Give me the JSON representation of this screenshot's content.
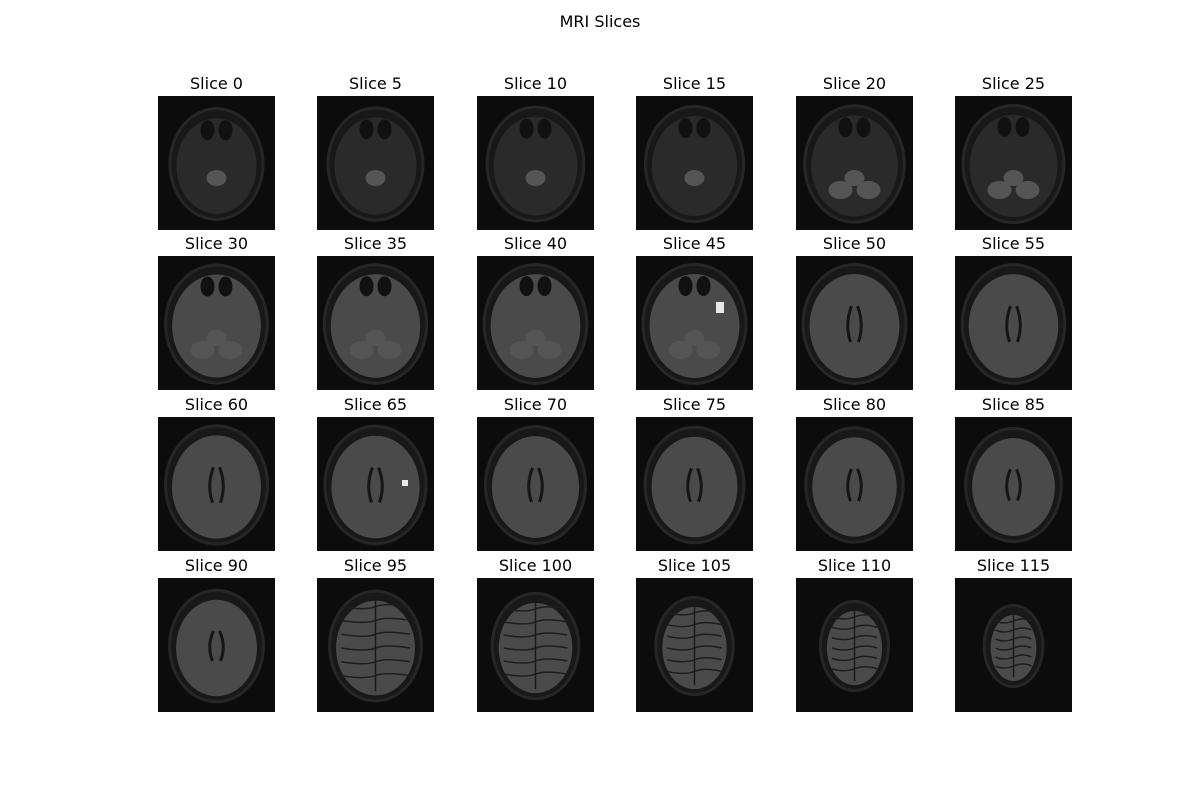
{
  "figure": {
    "title": "MRI Slices"
  },
  "slices": [
    {
      "label": "Slice 0",
      "index": 0
    },
    {
      "label": "Slice 5",
      "index": 5
    },
    {
      "label": "Slice 10",
      "index": 10
    },
    {
      "label": "Slice 15",
      "index": 15
    },
    {
      "label": "Slice 20",
      "index": 20
    },
    {
      "label": "Slice 25",
      "index": 25
    },
    {
      "label": "Slice 30",
      "index": 30
    },
    {
      "label": "Slice 35",
      "index": 35
    },
    {
      "label": "Slice 40",
      "index": 40
    },
    {
      "label": "Slice 45",
      "index": 45,
      "lesion": true
    },
    {
      "label": "Slice 50",
      "index": 50
    },
    {
      "label": "Slice 55",
      "index": 55
    },
    {
      "label": "Slice 60",
      "index": 60
    },
    {
      "label": "Slice 65",
      "index": 65,
      "lesion": true
    },
    {
      "label": "Slice 70",
      "index": 70
    },
    {
      "label": "Slice 75",
      "index": 75
    },
    {
      "label": "Slice 80",
      "index": 80
    },
    {
      "label": "Slice 85",
      "index": 85
    },
    {
      "label": "Slice 90",
      "index": 90
    },
    {
      "label": "Slice 95",
      "index": 95
    },
    {
      "label": "Slice 100",
      "index": 100
    },
    {
      "label": "Slice 105",
      "index": 105
    },
    {
      "label": "Slice 110",
      "index": 110
    },
    {
      "label": "Slice 115",
      "index": 115
    }
  ],
  "colors": {
    "background": "#ffffff",
    "image_background": "#0c0c0c",
    "tissue": "#4a4a4a",
    "lesion": "#e8e8e8"
  }
}
